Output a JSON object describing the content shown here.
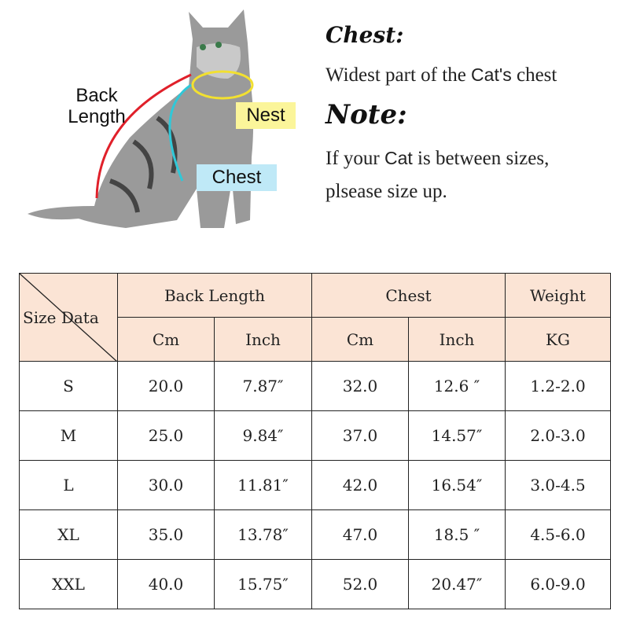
{
  "diagram": {
    "back_length_label": "Back Length",
    "nest_label": "Nest",
    "chest_label": "Chest",
    "colors": {
      "back_length": "#e0202a",
      "nest": "#f2e030",
      "chest": "#30c8d8",
      "nest_bg": "#fbf59a",
      "chest_bg": "#bfe9f7"
    }
  },
  "info": {
    "chest_title": "Chest:",
    "chest_text_1": "Widest part of the",
    "chest_text_cat": "Cat's",
    "chest_text_2": "chest",
    "note_title": "Note:",
    "note_text_1": "If your",
    "note_text_cat": "Cat",
    "note_text_2": "is between sizes,",
    "note_text_3": "plsease size up."
  },
  "table": {
    "corner": "Size Data",
    "groups": [
      "Back Length",
      "Chest",
      "Weight"
    ],
    "units": [
      "Cm",
      "Inch",
      "Cm",
      "Inch",
      "KG"
    ],
    "header_bg": "#fbe4d5",
    "rows": [
      [
        "S",
        "20.0",
        "7.87″",
        "32.0",
        "12.6 ″",
        "1.2-2.0"
      ],
      [
        "M",
        "25.0",
        "9.84″",
        "37.0",
        "14.57″",
        "2.0-3.0"
      ],
      [
        "L",
        "30.0",
        "11.81″",
        "42.0",
        "16.54″",
        "3.0-4.5"
      ],
      [
        "XL",
        "35.0",
        "13.78″",
        "47.0",
        "18.5 ″",
        "4.5-6.0"
      ],
      [
        "XXL",
        "40.0",
        "15.75″",
        "52.0",
        "20.47″",
        "6.0-9.0"
      ]
    ]
  }
}
